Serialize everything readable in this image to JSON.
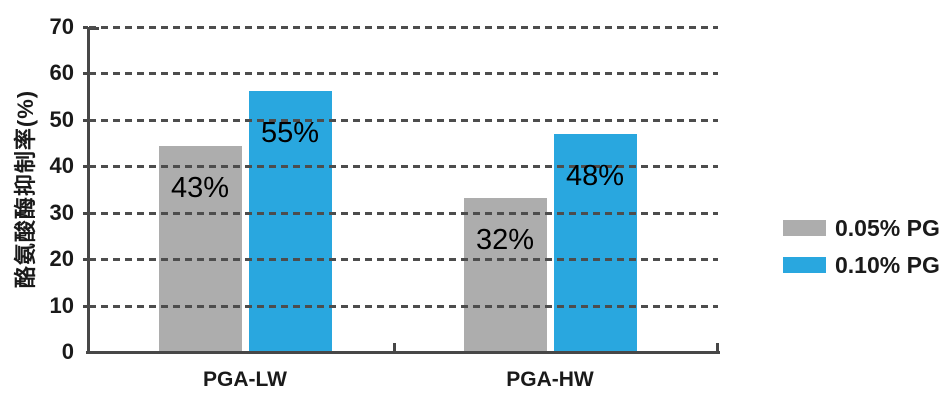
{
  "page": {
    "background": "#ffffff"
  },
  "chart_data": {
    "type": "bar",
    "title": "",
    "xlabel": "",
    "ylabel": "酪氨酸酶抑制率(%)",
    "ylim": [
      0,
      70
    ],
    "yticks": [
      0,
      10,
      20,
      30,
      40,
      50,
      60,
      70
    ],
    "grid": "horizontal dashed lines drawn over the bars",
    "legend_position": "right",
    "categories": [
      "PGA-LW",
      "PGA-HW"
    ],
    "series": [
      {
        "name": "0.05% PGA",
        "color": "#adadad",
        "values": [
          43,
          32
        ],
        "value_labels": [
          "43%",
          "32%"
        ],
        "drawn_bar_tops": [
          44.3,
          33.2
        ]
      },
      {
        "name": "0.10% PGA",
        "color": "#29a7df",
        "values": [
          55,
          48
        ],
        "value_labels": [
          "55%",
          "48%"
        ],
        "drawn_bar_tops": [
          56.2,
          47.0
        ]
      }
    ],
    "colors": {
      "gridline": "#4d4d4d",
      "axis": "#474747",
      "text": "#1a1a1a",
      "bar_label_text": "#000000"
    }
  }
}
